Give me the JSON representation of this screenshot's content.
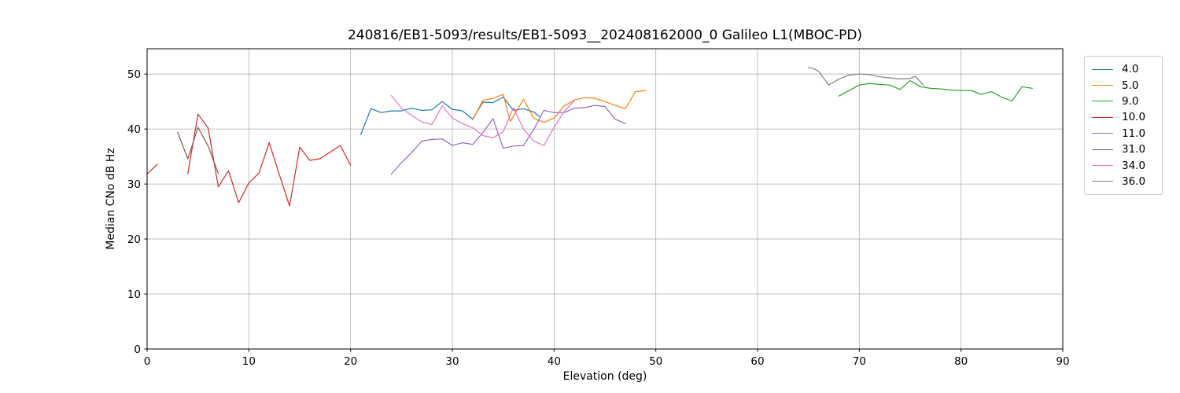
{
  "chart_data": {
    "type": "line",
    "title": "240816/EB1-5093/results/EB1-5093__202408162000_0 Galileo L1(MBOC-PD)",
    "xlabel": "Elevation (deg)",
    "ylabel": "Median CNo dB Hz",
    "xlim": [
      0,
      90
    ],
    "ylim": [
      0,
      54.6
    ],
    "xticks": [
      0,
      10,
      20,
      30,
      40,
      50,
      60,
      70,
      80,
      90
    ],
    "yticks": [
      0,
      10,
      20,
      30,
      40,
      50
    ],
    "grid": true,
    "grid_color": "#b0b0b0",
    "spine_color": "#000000",
    "legend_position": "outside-right",
    "legend_border_color": "#cccccc",
    "series": [
      {
        "name": "4.0",
        "color": "#1f77b4",
        "x": [
          21,
          22,
          23,
          24,
          25,
          26,
          27,
          28,
          29,
          30,
          31,
          32,
          33,
          34,
          35,
          36,
          37,
          38,
          38.6
        ],
        "y": [
          39.0,
          43.7,
          43.0,
          43.3,
          43.3,
          43.8,
          43.4,
          43.5,
          45.0,
          43.6,
          43.3,
          41.8,
          44.9,
          44.8,
          45.8,
          43.4,
          43.7,
          43.1,
          42.2
        ]
      },
      {
        "name": "5.0",
        "color": "#ff7f0e",
        "x": [
          32,
          33,
          34,
          35,
          35.7,
          37,
          38,
          39,
          40,
          41,
          42,
          43,
          44,
          45,
          46,
          47,
          48,
          49
        ],
        "y": [
          41.7,
          45.2,
          45.6,
          46.3,
          41.4,
          45.4,
          42.0,
          41.2,
          42.0,
          44.2,
          45.3,
          45.7,
          45.6,
          45.0,
          44.3,
          43.7,
          46.8,
          47.0
        ]
      },
      {
        "name": "9.0",
        "color": "#2ca02c",
        "x": [
          68,
          69,
          70,
          71,
          72,
          73,
          74,
          75,
          76,
          77,
          78,
          79,
          80,
          81,
          82,
          83,
          84,
          85,
          86,
          87
        ],
        "y": [
          46.0,
          47.0,
          48.0,
          48.3,
          48.1,
          48.0,
          47.2,
          48.8,
          47.7,
          47.4,
          47.3,
          47.1,
          47.0,
          47.0,
          46.3,
          46.8,
          45.8,
          45.1,
          47.7,
          47.4
        ]
      },
      {
        "name": "10.0",
        "color": "#d62728",
        "x": [
          0,
          1,
          null,
          4,
          5,
          6,
          7,
          8,
          9,
          10,
          11,
          12,
          13,
          14,
          15,
          16,
          17,
          18,
          19,
          20
        ],
        "y": [
          31.8,
          33.6,
          null,
          31.9,
          42.7,
          40.2,
          29.5,
          32.4,
          26.6,
          30.2,
          32.0,
          37.5,
          31.7,
          26.0,
          36.7,
          34.3,
          34.6,
          35.8,
          37.0,
          33.4
        ]
      },
      {
        "name": "11.0",
        "color": "#9467bd",
        "x": [
          24,
          25,
          26,
          27,
          28,
          29,
          30,
          31,
          32,
          33,
          34,
          35,
          36,
          37,
          38,
          39,
          40,
          41,
          42,
          43,
          44,
          45,
          46,
          47
        ],
        "y": [
          31.8,
          33.9,
          35.7,
          37.8,
          38.1,
          38.2,
          37.0,
          37.5,
          37.2,
          39.3,
          41.9,
          36.5,
          36.9,
          37.0,
          39.9,
          43.4,
          43.0,
          43.0,
          43.8,
          43.9,
          44.3,
          44.1,
          41.8,
          41.0
        ]
      },
      {
        "name": "31.0",
        "color": "#8c564b",
        "x": [
          3,
          4,
          5,
          6,
          7
        ],
        "y": [
          39.4,
          34.6,
          40.3,
          36.9,
          31.9
        ]
      },
      {
        "name": "34.0",
        "color": "#e377c2",
        "x": [
          24,
          25,
          26,
          27,
          28,
          29,
          30,
          31,
          32,
          33,
          34,
          35,
          36,
          37,
          38,
          39,
          40,
          41,
          42
        ],
        "y": [
          46.1,
          43.8,
          42.5,
          41.3,
          40.8,
          44.2,
          42.0,
          41.0,
          40.2,
          38.8,
          38.4,
          39.5,
          43.9,
          40.0,
          37.8,
          37.0,
          40.3,
          43.2,
          45.2
        ]
      },
      {
        "name": "36.0",
        "color": "#7f7f7f",
        "x": [
          65,
          65.5,
          66,
          67,
          68,
          69,
          70,
          71,
          72,
          73,
          74,
          75,
          75.5,
          76.3
        ],
        "y": [
          51.2,
          51.0,
          50.5,
          48.0,
          49.1,
          49.8,
          50.0,
          49.9,
          49.5,
          49.3,
          49.1,
          49.2,
          49.6,
          48.0
        ]
      }
    ]
  }
}
